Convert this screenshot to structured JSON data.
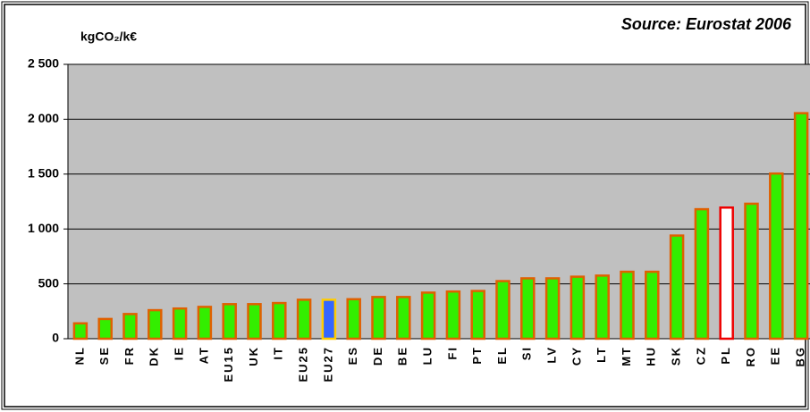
{
  "chart_data": {
    "type": "bar",
    "title": "Source: Eurostat 2006",
    "y_label": "kgCO₂/k€",
    "categories": [
      "NL",
      "SE",
      "FR",
      "DK",
      "IE",
      "AT",
      "EU15",
      "UK",
      "IT",
      "EU25",
      "EU27",
      "ES",
      "DE",
      "BE",
      "LU",
      "FI",
      "PT",
      "EL",
      "SI",
      "LV",
      "CY",
      "LT",
      "MT",
      "HU",
      "SK",
      "CZ",
      "PL",
      "RO",
      "EE",
      "BG"
    ],
    "values": [
      140,
      180,
      225,
      260,
      275,
      290,
      315,
      315,
      325,
      355,
      355,
      360,
      380,
      380,
      420,
      430,
      435,
      525,
      550,
      550,
      565,
      575,
      610,
      610,
      940,
      1180,
      1195,
      1230,
      1505,
      2055
    ],
    "colors": [
      "#33ee00",
      "#33ee00",
      "#33ee00",
      "#33ee00",
      "#33ee00",
      "#33ee00",
      "#33ee00",
      "#33ee00",
      "#33ee00",
      "#33ee00",
      "#3366ff",
      "#33ee00",
      "#33ee00",
      "#33ee00",
      "#33ee00",
      "#33ee00",
      "#33ee00",
      "#33ee00",
      "#33ee00",
      "#33ee00",
      "#33ee00",
      "#33ee00",
      "#33ee00",
      "#33ee00",
      "#33ee00",
      "#33ee00",
      "#ffffff",
      "#33ee00",
      "#33ee00",
      "#33ee00"
    ],
    "edge_colors": [
      "#e06000",
      "#e06000",
      "#e06000",
      "#e06000",
      "#e06000",
      "#e06000",
      "#e06000",
      "#e06000",
      "#e06000",
      "#e06000",
      "#ffcc00",
      "#e06000",
      "#e06000",
      "#e06000",
      "#e06000",
      "#e06000",
      "#e06000",
      "#e06000",
      "#e06000",
      "#e06000",
      "#e06000",
      "#e06000",
      "#e06000",
      "#e06000",
      "#e06000",
      "#e06000",
      "#ee0000",
      "#e06000",
      "#e06000",
      "#e06000"
    ],
    "ylim": [
      0,
      2500
    ],
    "yticks": [
      0,
      500,
      {
        "value": 1000,
        "label": "1 000"
      },
      {
        "value": 1500,
        "label": "1 500"
      },
      {
        "value": 2000,
        "label": "2 000"
      },
      {
        "value": 2500,
        "label": "2 500"
      }
    ],
    "grid": true,
    "background": "#c0c0c0"
  }
}
